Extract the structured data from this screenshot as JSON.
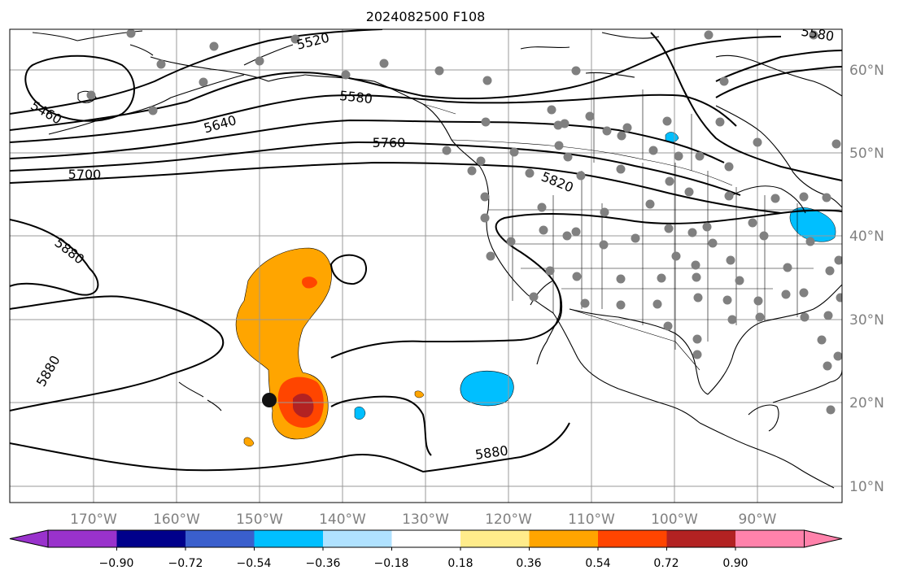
{
  "title": "2024082500 F108",
  "longitude_labels": [
    "170°W",
    "160°W",
    "150°W",
    "140°W",
    "130°W",
    "120°W",
    "110°W",
    "100°W",
    "90°W"
  ],
  "latitude_labels": [
    "60°N",
    "50°N",
    "40°N",
    "30°N",
    "20°N",
    "10°N"
  ],
  "contour_labels": [
    "5520",
    "5580",
    "5460",
    "5640",
    "5760",
    "5700",
    "5820",
    "5880",
    "5880",
    "5880",
    "5580"
  ],
  "colorbar": {
    "tick_labels": [
      "−0.90",
      "−0.72",
      "−0.54",
      "−0.36",
      "−0.18",
      "0.18",
      "0.36",
      "0.54",
      "0.72",
      "0.90"
    ],
    "colors": [
      "#9932cc",
      "#00008b",
      "#3a5fcd",
      "#00bfff",
      "#b0e2ff",
      "#ffffff",
      "#ffec8b",
      "#ffa500",
      "#ff4500",
      "#b22222",
      "#ff82ab"
    ]
  },
  "colors": {
    "grid": "#999999",
    "contour": "#000000",
    "station": "#808080",
    "label": "#808080"
  }
}
